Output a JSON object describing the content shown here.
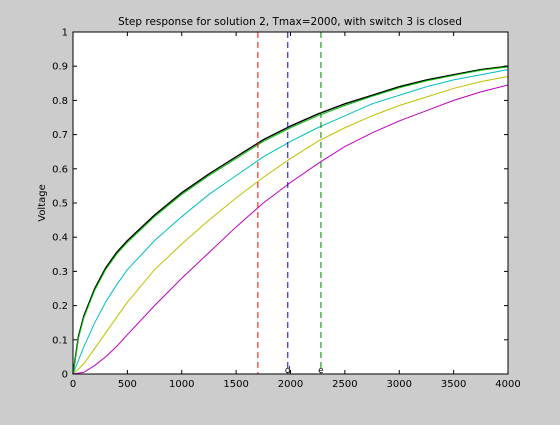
{
  "chart_data": {
    "type": "line",
    "title": "Step response for solution 2, Tmax=2000, with switch 3 is closed",
    "xlabel": "",
    "ylabel": "Voltage",
    "xlim": [
      0,
      4000
    ],
    "ylim": [
      0,
      1
    ],
    "xticks": [
      0,
      500,
      1000,
      1500,
      2000,
      2500,
      3000,
      3500,
      4000
    ],
    "yticks": [
      0,
      0.1,
      0.2,
      0.3,
      0.4,
      0.5,
      0.6,
      0.7,
      0.8,
      0.9,
      1
    ],
    "grid": false,
    "legend": "none",
    "series": [
      {
        "color": "#000000",
        "x": [
          0,
          50,
          100,
          200,
          300,
          400,
          500,
          750,
          1000,
          1250,
          1500,
          1750,
          2000,
          2250,
          2500,
          2750,
          3000,
          3250,
          3500,
          3750,
          4000
        ],
        "y": [
          0,
          0.11,
          0.17,
          0.25,
          0.31,
          0.355,
          0.39,
          0.465,
          0.53,
          0.585,
          0.635,
          0.685,
          0.725,
          0.76,
          0.79,
          0.815,
          0.84,
          0.86,
          0.875,
          0.89,
          0.9
        ]
      },
      {
        "color": "#00bf00",
        "x": [
          0,
          50,
          100,
          200,
          300,
          400,
          500,
          750,
          1000,
          1250,
          1500,
          1750,
          2000,
          2250,
          2500,
          2750,
          3000,
          3250,
          3500,
          3750,
          4000
        ],
        "y": [
          0,
          0.105,
          0.165,
          0.245,
          0.305,
          0.35,
          0.385,
          0.46,
          0.525,
          0.58,
          0.63,
          0.68,
          0.72,
          0.755,
          0.785,
          0.812,
          0.837,
          0.857,
          0.873,
          0.888,
          0.898
        ]
      },
      {
        "color": "#00bfbf",
        "x": [
          0,
          100,
          200,
          300,
          400,
          500,
          750,
          1000,
          1250,
          1500,
          1750,
          2000,
          2250,
          2500,
          2750,
          3000,
          3250,
          3500,
          3750,
          4000
        ],
        "y": [
          0,
          0.08,
          0.15,
          0.21,
          0.26,
          0.305,
          0.39,
          0.46,
          0.525,
          0.58,
          0.635,
          0.68,
          0.72,
          0.755,
          0.79,
          0.815,
          0.84,
          0.86,
          0.875,
          0.89
        ]
      },
      {
        "color": "#bfbf00",
        "x": [
          0,
          100,
          200,
          300,
          400,
          500,
          750,
          1000,
          1250,
          1500,
          1750,
          2000,
          2250,
          2500,
          2750,
          3000,
          3250,
          3500,
          3750,
          4000
        ],
        "y": [
          0,
          0.03,
          0.075,
          0.12,
          0.165,
          0.21,
          0.305,
          0.38,
          0.45,
          0.515,
          0.575,
          0.63,
          0.68,
          0.72,
          0.755,
          0.785,
          0.81,
          0.835,
          0.855,
          0.87
        ]
      },
      {
        "color": "#bf00bf",
        "x": [
          0,
          100,
          200,
          300,
          400,
          500,
          750,
          1000,
          1250,
          1500,
          1750,
          2000,
          2250,
          2500,
          2750,
          3000,
          3250,
          3500,
          3750,
          4000
        ],
        "y": [
          0,
          0.005,
          0.025,
          0.05,
          0.08,
          0.115,
          0.2,
          0.28,
          0.355,
          0.43,
          0.5,
          0.56,
          0.615,
          0.665,
          0.705,
          0.74,
          0.77,
          0.8,
          0.825,
          0.845
        ]
      }
    ],
    "vlines": [
      {
        "x": 1700,
        "color": "#ff0000",
        "marker": ""
      },
      {
        "x": 1975,
        "color": "#0000ff",
        "marker": "d"
      },
      {
        "x": 2280,
        "color": "#008000",
        "marker": "e"
      }
    ]
  }
}
